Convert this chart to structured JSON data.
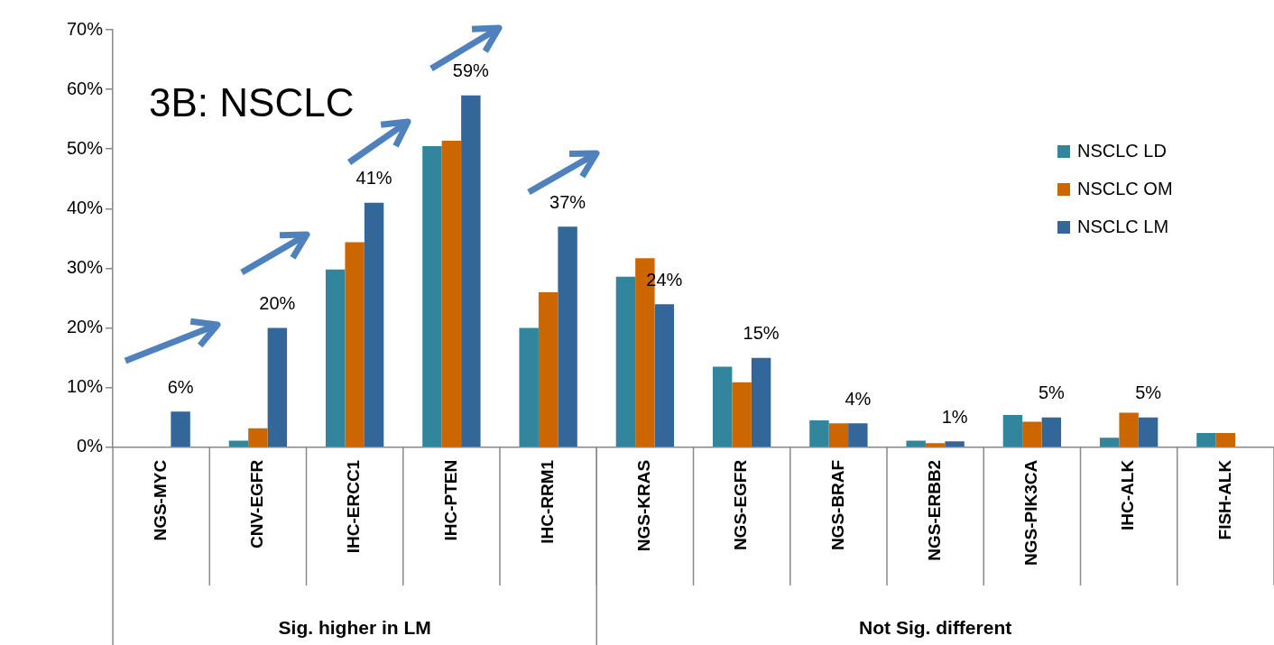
{
  "chart_data": {
    "type": "bar",
    "title": "3B: NSCLC",
    "categories": [
      "NGS-MYC",
      "CNV-EGFR",
      "IHC-ERCC1",
      "IHC-PTEN",
      "IHC-RRM1",
      "NGS-KRAS",
      "NGS-EGFR",
      "NGS-BRAF",
      "NGS-ERBB2",
      "NGS-PIK3CA",
      "IHC-ALK",
      "FISH-ALK"
    ],
    "series": [
      {
        "name": "NSCLC LD",
        "color": "#31859c",
        "values": [
          0,
          1.1,
          29.8,
          50.5,
          20,
          28.6,
          13.5,
          4.5,
          1.1,
          5.4,
          1.6,
          2.4
        ]
      },
      {
        "name": "NSCLC OM",
        "color": "#cc6600",
        "values": [
          0,
          3.2,
          34.4,
          51.4,
          26,
          31.7,
          10.9,
          4.0,
          0.7,
          4.3,
          5.8,
          2.4
        ]
      },
      {
        "name": "NSCLC LM",
        "color": "#336699",
        "values": [
          6,
          20,
          41,
          59,
          37,
          24,
          15,
          4,
          1,
          5,
          5,
          null
        ],
        "value_labels": [
          "6%",
          "20%",
          "41%",
          "59%",
          "37%",
          "24%",
          "15%",
          "4%",
          "1%",
          "5%",
          "5%",
          null
        ]
      }
    ],
    "ylim": [
      0,
      70
    ],
    "yticks": [
      {
        "value": 0,
        "label": "0%"
      },
      {
        "value": 10,
        "label": "10%"
      },
      {
        "value": 20,
        "label": "20%"
      },
      {
        "value": 30,
        "label": "30%"
      },
      {
        "value": 40,
        "label": "40%"
      },
      {
        "value": 50,
        "label": "50%"
      },
      {
        "value": 60,
        "label": "60%"
      },
      {
        "value": 70,
        "label": "70%"
      }
    ],
    "annotations": [
      "Sig. higher in LM",
      "Not Sig. different"
    ],
    "grid": false,
    "legend": "right"
  }
}
